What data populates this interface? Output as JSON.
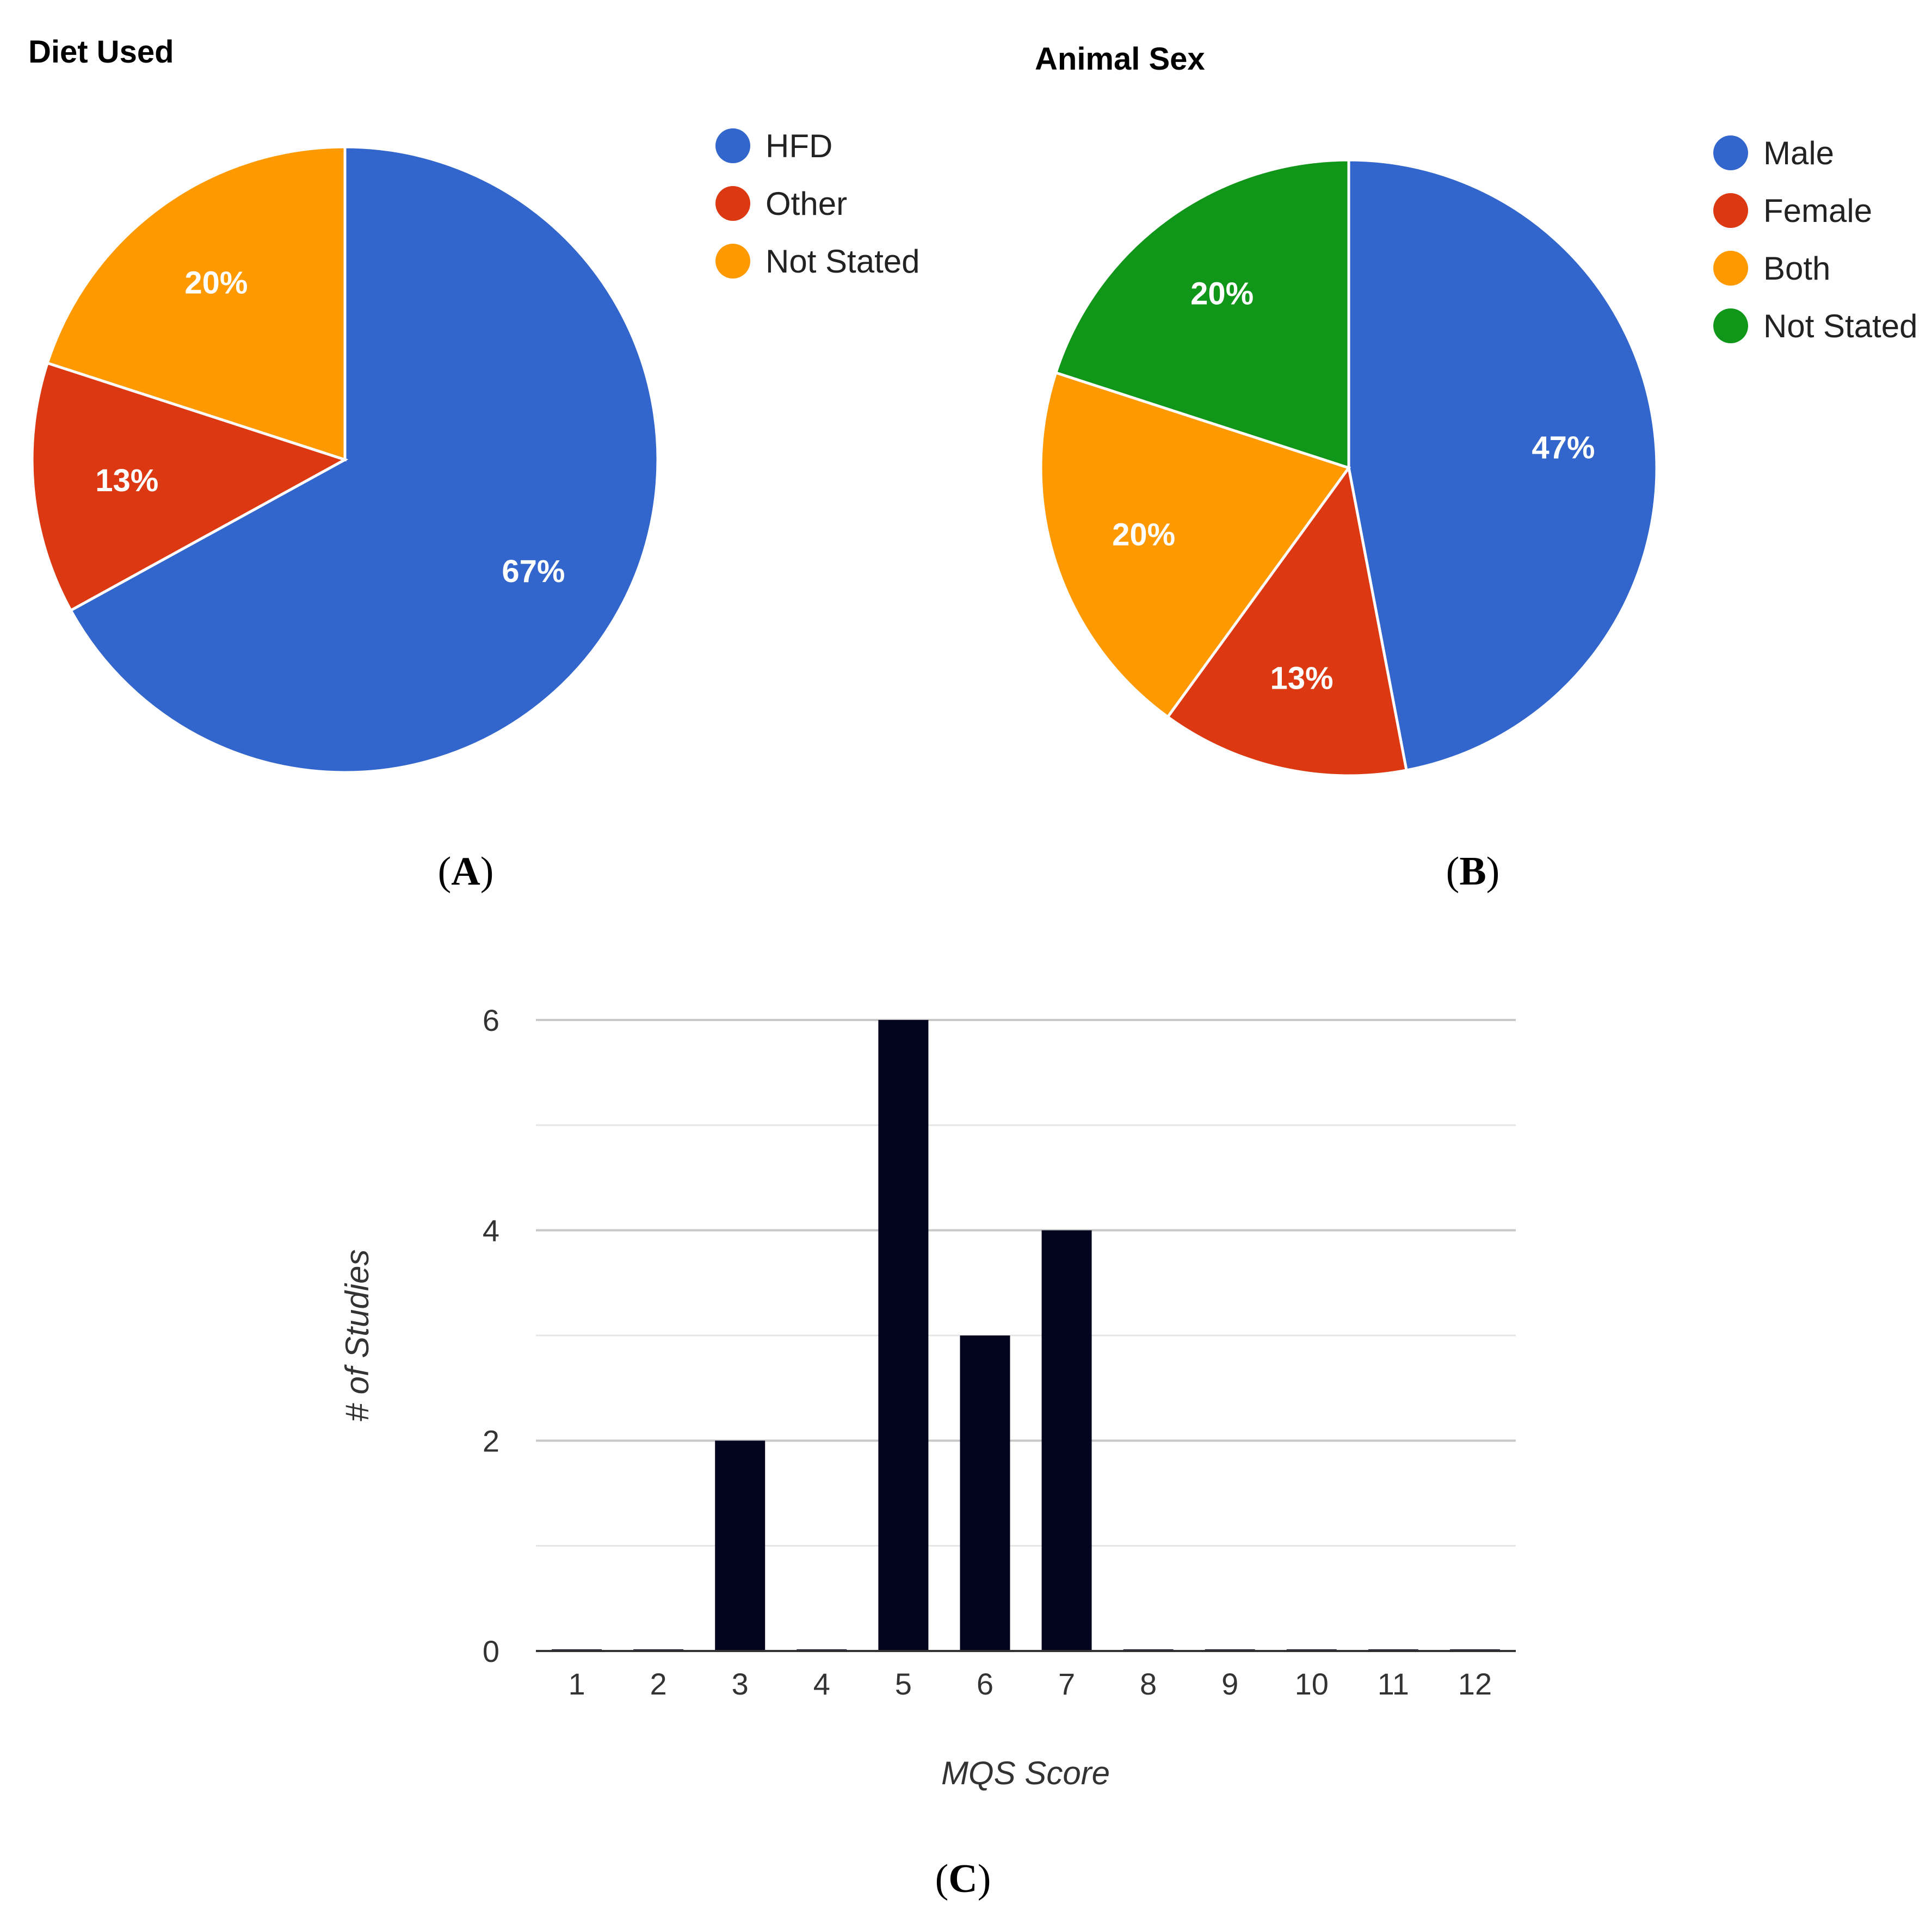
{
  "chart_data": [
    {
      "type": "pie",
      "title": "Diet Used",
      "panel_label": "A",
      "slices": [
        {
          "label": "HFD",
          "value": 67,
          "display": "67%",
          "color": "#3366cc"
        },
        {
          "label": "Other",
          "value": 13,
          "display": "13%",
          "color": "#dc3912"
        },
        {
          "label": "Not Stated",
          "value": 20,
          "display": "20%",
          "color": "#ff9900"
        }
      ],
      "legend_position": "right"
    },
    {
      "type": "pie",
      "title": "Animal Sex",
      "panel_label": "B",
      "slices": [
        {
          "label": "Male",
          "value": 47,
          "display": "47%",
          "color": "#3366cc"
        },
        {
          "label": "Female",
          "value": 13,
          "display": "13%",
          "color": "#dc3912"
        },
        {
          "label": "Both",
          "value": 20,
          "display": "20%",
          "color": "#ff9900"
        },
        {
          "label": "Not Stated",
          "value": 20,
          "display": "20%",
          "color": "#109618"
        }
      ],
      "legend_position": "right"
    },
    {
      "type": "bar",
      "panel_label": "C",
      "categories": [
        "1",
        "2",
        "3",
        "4",
        "5",
        "6",
        "7",
        "8",
        "9",
        "10",
        "11",
        "12"
      ],
      "values": [
        0,
        0,
        2,
        0,
        6,
        3,
        4,
        0,
        0,
        0,
        0,
        0
      ],
      "xlabel": "MQS Score",
      "ylabel": "# of Studies",
      "ylim": [
        0,
        6
      ],
      "yticks": [
        "0",
        "2",
        "4",
        "6"
      ],
      "grid": true,
      "bar_color": "#03051e"
    }
  ]
}
